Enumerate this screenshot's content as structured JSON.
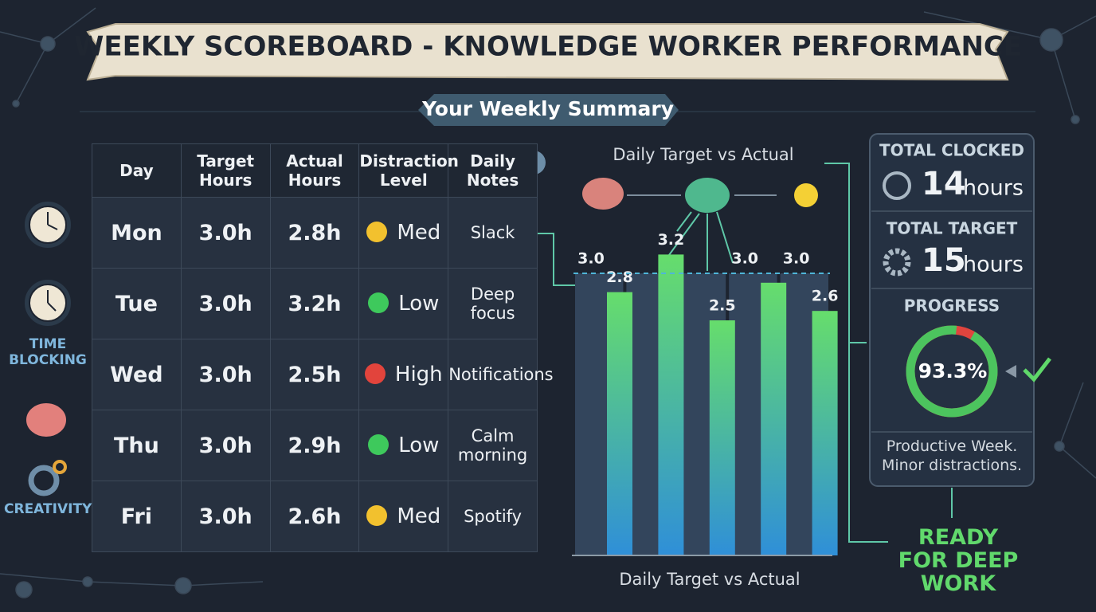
{
  "title": "WEEKLY SCOREBOARD - KNOWLEDGE WORKER PERFORMANCE",
  "subtitle": "Your Weekly Summary",
  "sidebar": [
    "TIME BLOCKING",
    "CREATIVITY"
  ],
  "table": {
    "header": [
      "Day",
      "Target Hours",
      "Actual Hours",
      "Distraction Level",
      "Daily Notes"
    ],
    "rows": [
      [
        "Mon",
        "3.0h",
        "2.8h",
        "Med",
        "Slack"
      ],
      [
        "Tue",
        "3.0h",
        "3.2h",
        "Low",
        "Deep focus"
      ],
      [
        "Wed",
        "3.0h",
        "2.5h",
        "High",
        "Notifications"
      ],
      [
        "Thu",
        "3.0h",
        "2.9h",
        "Low",
        "Calm morning"
      ],
      [
        "Fri",
        "3.0h",
        "2.6h",
        "Med",
        "Spotify"
      ]
    ],
    "level_colors": {
      "Low": "#3ec95c",
      "Med": "#f2c12e",
      "High": "#e2443c"
    }
  },
  "chart_data": {
    "type": "bar",
    "title": "Daily Target vs Actual",
    "x_label": "Daily Target vs Actual",
    "categories": [
      null,
      null,
      null,
      null,
      null
    ],
    "series": [
      {
        "color": "#33455c",
        "values": [
          3.0,
          3.0,
          3.0,
          3.0,
          3.0
        ],
        "value_labels": [
          "3.0",
          null,
          null,
          "3.0",
          "3.0"
        ]
      },
      {
        "color": "#5fd66e",
        "values": [
          2.8,
          3.2,
          2.5,
          2.9,
          2.6
        ],
        "value_labels": [
          "2.8",
          "3.2",
          "2.5",
          null,
          "2.6"
        ]
      }
    ],
    "ylim": [
      0,
      3.5
    ]
  },
  "stats": {
    "clocked": {
      "label": "TOTAL CLOCKED",
      "value": 14,
      "unit": "hours"
    },
    "target": {
      "label": "TOTAL TARGET",
      "value": 15,
      "unit": "hours"
    },
    "progress": {
      "label": "PROGRESS",
      "value": 93.3,
      "value_label": "93.3%"
    },
    "note": "Productive Week. Minor distractions."
  },
  "footer": "READY FOR DEEP WORK"
}
